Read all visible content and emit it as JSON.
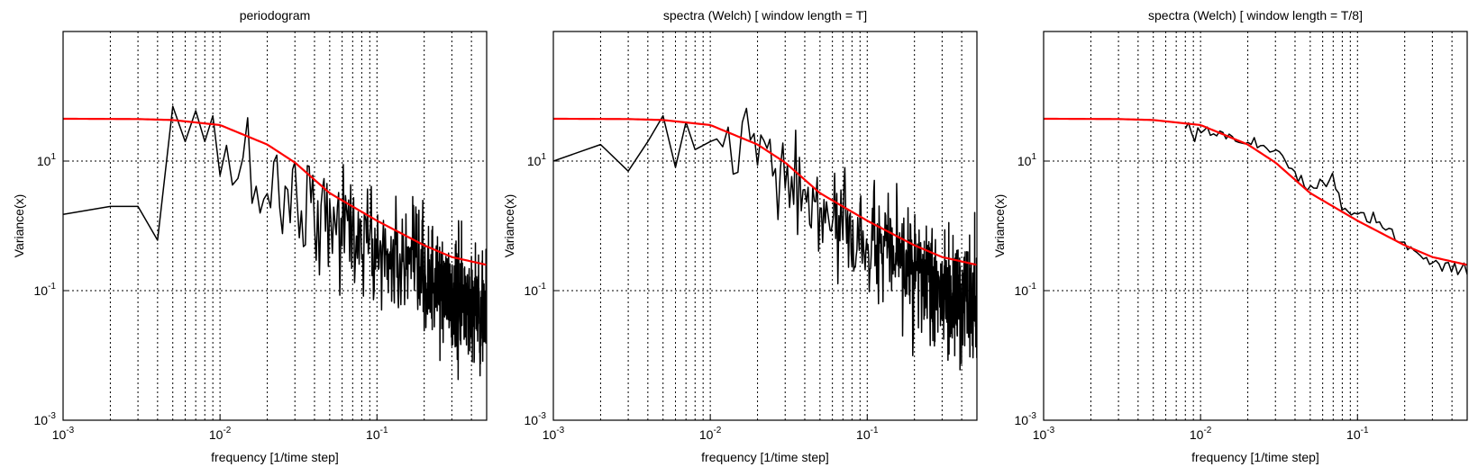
{
  "chart_data": [
    {
      "type": "line",
      "title": "periodogram",
      "xlabel": "frequency [1/time step]",
      "ylabel": "Variance(x)",
      "x_scale": "log",
      "y_scale": "log",
      "xlim": [
        0.001,
        0.5
      ],
      "ylim": [
        0.001,
        1000
      ],
      "x_ticks": [
        {
          "value": 0.001,
          "base": "10",
          "exp": "-3"
        },
        {
          "value": 0.01,
          "base": "10",
          "exp": "-2"
        },
        {
          "value": 0.1,
          "base": "10",
          "exp": "-1"
        }
      ],
      "y_ticks": [
        {
          "value": 0.001,
          "base": "10",
          "exp": "-3"
        },
        {
          "value": 0.1,
          "base": "10",
          "exp": "-1"
        },
        {
          "value": 10,
          "base": "10",
          "exp": "1"
        }
      ],
      "grid": true,
      "series": [
        {
          "kind": "noisy_estimate",
          "color": "#000000",
          "spread": 1.0,
          "points": [
            [
              0.001,
              1.5
            ],
            [
              0.002,
              2.0
            ],
            [
              0.003,
              2.0
            ],
            [
              0.004,
              0.6
            ],
            [
              0.005,
              70
            ],
            [
              0.006,
              20
            ],
            [
              0.007,
              60
            ],
            [
              0.008,
              20
            ],
            [
              0.009,
              50
            ],
            [
              0.01,
              6
            ],
            [
              0.015,
              8
            ],
            [
              0.02,
              4
            ],
            [
              0.03,
              3
            ],
            [
              0.05,
              1.5
            ],
            [
              0.1,
              0.4
            ],
            [
              0.2,
              0.15
            ],
            [
              0.3,
              0.08
            ],
            [
              0.5,
              0.05
            ]
          ]
        },
        {
          "kind": "theoretical",
          "color": "#ff0000",
          "points": [
            [
              0.001,
              45
            ],
            [
              0.003,
              44.5
            ],
            [
              0.005,
              43
            ],
            [
              0.01,
              36
            ],
            [
              0.02,
              18
            ],
            [
              0.03,
              9.5
            ],
            [
              0.05,
              3.2
            ],
            [
              0.1,
              1.2
            ],
            [
              0.2,
              0.5
            ],
            [
              0.3,
              0.33
            ],
            [
              0.5,
              0.25
            ]
          ]
        }
      ]
    },
    {
      "type": "line",
      "title": "spectra (Welch)  [ window length = T]",
      "xlabel": "frequency [1/time step]",
      "ylabel": "Variance(x)",
      "x_scale": "log",
      "y_scale": "log",
      "xlim": [
        0.001,
        0.5
      ],
      "ylim": [
        0.001,
        1000
      ],
      "x_ticks": [
        {
          "value": 0.001,
          "base": "10",
          "exp": "-3"
        },
        {
          "value": 0.01,
          "base": "10",
          "exp": "-2"
        },
        {
          "value": 0.1,
          "base": "10",
          "exp": "-1"
        }
      ],
      "y_ticks": [
        {
          "value": 0.001,
          "base": "10",
          "exp": "-3"
        },
        {
          "value": 0.1,
          "base": "10",
          "exp": "-1"
        },
        {
          "value": 10,
          "base": "10",
          "exp": "1"
        }
      ],
      "grid": true,
      "series": [
        {
          "kind": "noisy_estimate",
          "color": "#000000",
          "spread": 0.9,
          "points": [
            [
              0.001,
              10
            ],
            [
              0.002,
              18
            ],
            [
              0.003,
              7
            ],
            [
              0.004,
              20
            ],
            [
              0.005,
              50
            ],
            [
              0.006,
              8
            ],
            [
              0.007,
              40
            ],
            [
              0.008,
              15
            ],
            [
              0.01,
              20
            ],
            [
              0.02,
              12
            ],
            [
              0.03,
              5
            ],
            [
              0.05,
              1.5
            ],
            [
              0.1,
              0.5
            ],
            [
              0.2,
              0.2
            ],
            [
              0.3,
              0.08
            ],
            [
              0.5,
              0.05
            ]
          ]
        },
        {
          "kind": "theoretical",
          "color": "#ff0000",
          "points": [
            [
              0.001,
              45
            ],
            [
              0.003,
              44.5
            ],
            [
              0.005,
              43
            ],
            [
              0.01,
              36
            ],
            [
              0.02,
              18
            ],
            [
              0.03,
              9.5
            ],
            [
              0.05,
              3.2
            ],
            [
              0.1,
              1.2
            ],
            [
              0.2,
              0.5
            ],
            [
              0.3,
              0.33
            ],
            [
              0.5,
              0.25
            ]
          ]
        }
      ]
    },
    {
      "type": "line",
      "title": "spectra (Welch)  [ window length = T/8]",
      "xlabel": "frequency [1/time step]",
      "ylabel": "Variance(x)",
      "x_scale": "log",
      "y_scale": "log",
      "xlim": [
        0.001,
        0.5
      ],
      "ylim": [
        0.001,
        1000
      ],
      "x_ticks": [
        {
          "value": 0.001,
          "base": "10",
          "exp": "-3"
        },
        {
          "value": 0.01,
          "base": "10",
          "exp": "-2"
        },
        {
          "value": 0.1,
          "base": "10",
          "exp": "-1"
        }
      ],
      "y_ticks": [
        {
          "value": 0.001,
          "base": "10",
          "exp": "-3"
        },
        {
          "value": 0.1,
          "base": "10",
          "exp": "-1"
        },
        {
          "value": 10,
          "base": "10",
          "exp": "1"
        }
      ],
      "grid": true,
      "series": [
        {
          "kind": "noisy_estimate",
          "color": "#000000",
          "spread": 0.12,
          "points": [
            [
              0.008,
              35
            ],
            [
              0.015,
              25
            ],
            [
              0.02,
              20
            ],
            [
              0.03,
              15
            ],
            [
              0.04,
              6
            ],
            [
              0.05,
              4
            ],
            [
              0.07,
              6
            ],
            [
              0.08,
              2
            ],
            [
              0.1,
              1.5
            ],
            [
              0.15,
              1.0
            ],
            [
              0.2,
              0.5
            ],
            [
              0.3,
              0.28
            ],
            [
              0.5,
              0.2
            ]
          ]
        },
        {
          "kind": "theoretical",
          "color": "#ff0000",
          "points": [
            [
              0.001,
              45
            ],
            [
              0.003,
              44.5
            ],
            [
              0.005,
              43
            ],
            [
              0.01,
              36
            ],
            [
              0.02,
              18
            ],
            [
              0.03,
              9.5
            ],
            [
              0.05,
              3.2
            ],
            [
              0.1,
              1.2
            ],
            [
              0.2,
              0.5
            ],
            [
              0.3,
              0.33
            ],
            [
              0.5,
              0.25
            ]
          ]
        }
      ]
    }
  ]
}
